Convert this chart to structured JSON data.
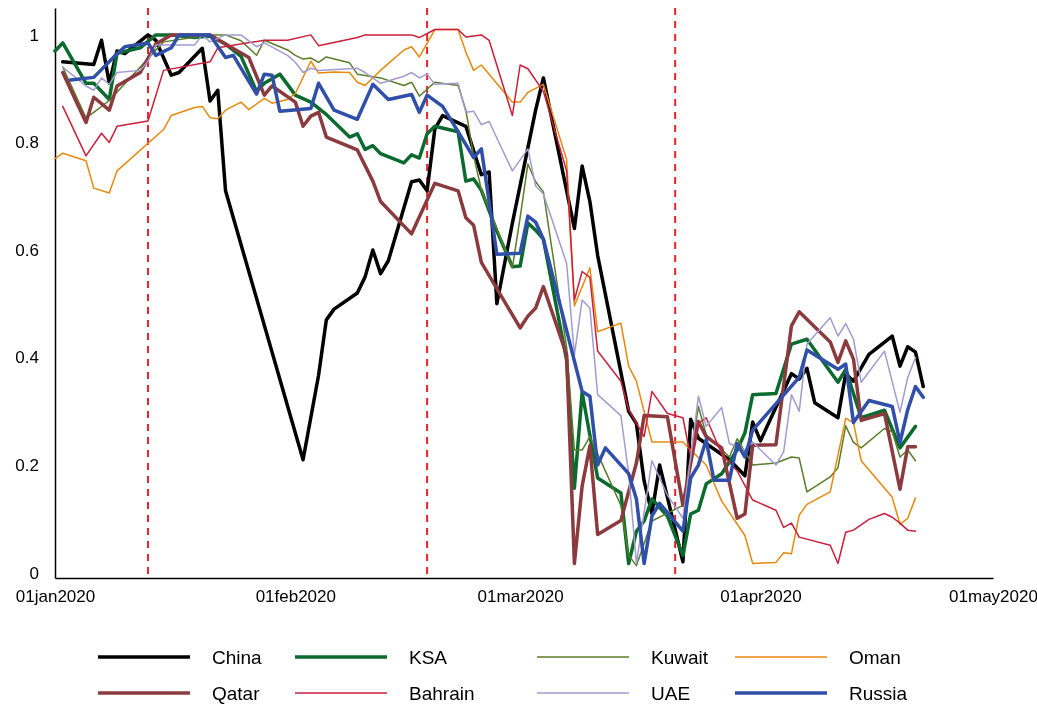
{
  "chart_data": {
    "type": "line",
    "xlim": [
      "2020-01-01",
      "2020-05-01"
    ],
    "xticks": [
      {
        "value": "2020-01-01",
        "label": "01jan2020"
      },
      {
        "value": "2020-02-01",
        "label": "01feb2020"
      },
      {
        "value": "2020-03-01",
        "label": "01mar2020"
      },
      {
        "value": "2020-04-01",
        "label": "01apr2020"
      },
      {
        "value": "2020-05-01",
        "label": "01may2020"
      }
    ],
    "ylim": [
      -0.01,
      1.05
    ],
    "yticks": [
      0,
      0.2,
      0.4,
      0.6,
      0.8,
      1
    ],
    "grid": false,
    "legend": "bottom",
    "line_style": "solid",
    "marker": "none",
    "ref_lines": [
      {
        "axis": "x",
        "value": "2020-01-13",
        "color": "#e8242a",
        "line_style": "dashed"
      },
      {
        "axis": "x",
        "value": "2020-02-18",
        "color": "#e8242a",
        "line_style": "dashed"
      },
      {
        "axis": "x",
        "value": "2020-03-21",
        "color": "#e8242a",
        "line_style": "dashed"
      }
    ],
    "series": [
      {
        "name": "China",
        "color": "#000000",
        "x": [
          "2020-01-02",
          "2020-01-06",
          "2020-01-07",
          "2020-01-08",
          "2020-01-09",
          "2020-01-10",
          "2020-01-13",
          "2020-01-14",
          "2020-01-16",
          "2020-01-17",
          "2020-01-20",
          "2020-01-21",
          "2020-01-22",
          "2020-01-23",
          "2020-02-02",
          "2020-02-04",
          "2020-02-05",
          "2020-02-06",
          "2020-02-09",
          "2020-02-10",
          "2020-02-11",
          "2020-02-12",
          "2020-02-13",
          "2020-02-16",
          "2020-02-17",
          "2020-02-18",
          "2020-02-19",
          "2020-02-20",
          "2020-02-23",
          "2020-02-25",
          "2020-02-26",
          "2020-02-27",
          "2020-02-29",
          "2020-03-03",
          "2020-03-04",
          "2020-03-08",
          "2020-03-09",
          "2020-03-10",
          "2020-03-11",
          "2020-03-15",
          "2020-03-16",
          "2020-03-17",
          "2020-03-18",
          "2020-03-19",
          "2020-03-20",
          "2020-03-22",
          "2020-03-23",
          "2020-03-24",
          "2020-03-28",
          "2020-03-30",
          "2020-03-31",
          "2020-04-01",
          "2020-04-05",
          "2020-04-06",
          "2020-04-07",
          "2020-04-08",
          "2020-04-11",
          "2020-04-12",
          "2020-04-13",
          "2020-04-15",
          "2020-04-18",
          "2020-04-19",
          "2020-04-20",
          "2020-04-21",
          "2020-04-22"
        ],
        "values": [
          0.95,
          0.945,
          0.99,
          0.91,
          0.97,
          0.965,
          1.0,
          0.99,
          0.925,
          0.93,
          0.975,
          0.877,
          0.897,
          0.71,
          0.21,
          0.367,
          0.47,
          0.49,
          0.52,
          0.55,
          0.6,
          0.556,
          0.58,
          0.727,
          0.73,
          0.71,
          0.825,
          0.85,
          0.83,
          0.74,
          0.745,
          0.5,
          0.65,
          0.86,
          0.92,
          0.64,
          0.756,
          0.69,
          0.59,
          0.3,
          0.277,
          0.17,
          0.11,
          0.2,
          0.14,
          0.02,
          0.285,
          0.25,
          0.21,
          0.18,
          0.28,
          0.245,
          0.37,
          0.36,
          0.38,
          0.316,
          0.288,
          0.37,
          0.356,
          0.406,
          0.44,
          0.384,
          0.42,
          0.41,
          0.346
        ]
      },
      {
        "name": "KSA",
        "color": "#0b6b2e",
        "x": [
          "2020-01-01",
          "2020-01-02",
          "2020-01-05",
          "2020-01-06",
          "2020-01-08",
          "2020-01-09",
          "2020-01-12",
          "2020-01-14",
          "2020-01-15",
          "2020-01-16",
          "2020-01-19",
          "2020-01-21",
          "2020-01-23",
          "2020-01-25",
          "2020-01-27",
          "2020-01-28",
          "2020-01-30",
          "2020-02-01",
          "2020-02-03",
          "2020-02-05",
          "2020-02-08",
          "2020-02-09",
          "2020-02-10",
          "2020-02-11",
          "2020-02-12",
          "2020-02-15",
          "2020-02-16",
          "2020-02-17",
          "2020-02-18",
          "2020-02-19",
          "2020-02-22",
          "2020-02-23",
          "2020-02-24",
          "2020-02-25",
          "2020-02-27",
          "2020-02-29",
          "2020-03-01",
          "2020-03-02",
          "2020-03-03",
          "2020-03-04",
          "2020-03-07",
          "2020-03-08",
          "2020-03-09",
          "2020-03-11",
          "2020-03-14",
          "2020-03-15",
          "2020-03-16",
          "2020-03-17",
          "2020-03-18",
          "2020-03-20",
          "2020-03-22",
          "2020-03-23",
          "2020-03-24",
          "2020-03-25",
          "2020-03-27",
          "2020-03-29",
          "2020-03-30",
          "2020-03-31",
          "2020-04-03",
          "2020-04-05",
          "2020-04-07",
          "2020-04-11",
          "2020-04-12",
          "2020-04-14",
          "2020-04-17",
          "2020-04-19",
          "2020-04-21"
        ],
        "values": [
          0.97,
          0.985,
          0.91,
          0.91,
          0.88,
          0.966,
          0.976,
          1.0,
          1.0,
          1.0,
          0.995,
          0.998,
          0.983,
          0.96,
          0.895,
          0.91,
          0.927,
          0.888,
          0.875,
          0.852,
          0.81,
          0.816,
          0.787,
          0.794,
          0.779,
          0.762,
          0.777,
          0.771,
          0.816,
          0.83,
          0.82,
          0.728,
          0.732,
          0.711,
          0.635,
          0.569,
          0.57,
          0.65,
          0.637,
          0.62,
          0.395,
          0.157,
          0.335,
          0.176,
          0.148,
          0.017,
          0.077,
          0.096,
          0.137,
          0.105,
          0.032,
          0.109,
          0.116,
          0.165,
          0.184,
          0.228,
          0.26,
          0.331,
          0.333,
          0.425,
          0.434,
          0.354,
          0.378,
          0.288,
          0.302,
          0.232,
          0.272
        ]
      },
      {
        "name": "Kuwait",
        "color": "#5a7d2a",
        "x": [
          "2020-01-02",
          "2020-01-05",
          "2020-01-06",
          "2020-01-08",
          "2020-01-15",
          "2020-01-21",
          "2020-01-23",
          "2020-01-25",
          "2020-01-27",
          "2020-01-28",
          "2020-01-31",
          "2020-02-01",
          "2020-02-02",
          "2020-02-03",
          "2020-02-04",
          "2020-02-05",
          "2020-02-08",
          "2020-02-09",
          "2020-02-12",
          "2020-02-15",
          "2020-02-16",
          "2020-02-17",
          "2020-02-19",
          "2020-02-22",
          "2020-02-23",
          "2020-02-24",
          "2020-02-25",
          "2020-02-29",
          "2020-03-01",
          "2020-03-02",
          "2020-03-03",
          "2020-03-04",
          "2020-03-07",
          "2020-03-08",
          "2020-03-09",
          "2020-03-10",
          "2020-03-14",
          "2020-03-15",
          "2020-03-16",
          "2020-03-18",
          "2020-03-22",
          "2020-03-24",
          "2020-03-25",
          "2020-03-28",
          "2020-03-29",
          "2020-03-31",
          "2020-04-03",
          "2020-04-05",
          "2020-04-06",
          "2020-04-07",
          "2020-04-10",
          "2020-04-11",
          "2020-04-12",
          "2020-04-13",
          "2020-04-14",
          "2020-04-17",
          "2020-04-18",
          "2020-04-19",
          "2020-04-20",
          "2020-04-21"
        ],
        "values": [
          0.94,
          0.846,
          0.856,
          0.878,
          0.987,
          1.0,
          1.0,
          0.989,
          0.962,
          0.99,
          0.972,
          0.962,
          0.955,
          0.957,
          0.949,
          0.959,
          0.948,
          0.927,
          0.92,
          0.906,
          0.912,
          0.886,
          0.912,
          0.906,
          0.86,
          0.775,
          0.712,
          0.567,
          0.66,
          0.76,
          0.727,
          0.708,
          0.419,
          0.228,
          0.228,
          0.253,
          0.125,
          0.032,
          0.013,
          0.096,
          0.125,
          0.309,
          0.257,
          0.215,
          0.249,
          0.2,
          0.204,
          0.215,
          0.213,
          0.15,
          0.178,
          0.195,
          0.273,
          0.242,
          0.232,
          0.268,
          0.262,
          0.215,
          0.228,
          0.208
        ]
      },
      {
        "name": "Oman",
        "color": "#e8890c",
        "x": [
          "2020-01-01",
          "2020-01-02",
          "2020-01-05",
          "2020-01-06",
          "2020-01-08",
          "2020-01-09",
          "2020-01-15",
          "2020-01-16",
          "2020-01-19",
          "2020-01-20",
          "2020-01-21",
          "2020-01-22",
          "2020-01-23",
          "2020-01-25",
          "2020-01-26",
          "2020-01-28",
          "2020-01-29",
          "2020-01-31",
          "2020-02-01",
          "2020-02-03",
          "2020-02-04",
          "2020-02-06",
          "2020-02-08",
          "2020-02-09",
          "2020-02-10",
          "2020-02-12",
          "2020-02-15",
          "2020-02-16",
          "2020-02-17",
          "2020-02-19",
          "2020-02-22",
          "2020-02-23",
          "2020-02-24",
          "2020-02-25",
          "2020-02-26",
          "2020-02-29",
          "2020-03-01",
          "2020-03-02",
          "2020-03-04",
          "2020-03-07",
          "2020-03-08",
          "2020-03-10",
          "2020-03-11",
          "2020-03-14",
          "2020-03-15",
          "2020-03-16",
          "2020-03-18",
          "2020-03-22",
          "2020-03-23",
          "2020-03-25",
          "2020-03-27",
          "2020-03-30",
          "2020-03-31",
          "2020-04-03",
          "2020-04-04",
          "2020-04-05",
          "2020-04-06",
          "2020-04-07",
          "2020-04-10",
          "2020-04-12",
          "2020-04-13",
          "2020-04-14",
          "2020-04-18",
          "2020-04-19",
          "2020-04-20",
          "2020-04-21"
        ],
        "values": [
          0.77,
          0.78,
          0.766,
          0.715,
          0.706,
          0.747,
          0.824,
          0.85,
          0.865,
          0.867,
          0.846,
          0.844,
          0.86,
          0.875,
          0.861,
          0.882,
          0.873,
          0.88,
          0.891,
          0.951,
          0.929,
          0.931,
          0.93,
          0.912,
          0.906,
          0.934,
          0.972,
          0.978,
          0.959,
          1.01,
          1.01,
          0.968,
          0.934,
          0.944,
          0.927,
          0.875,
          0.875,
          0.893,
          0.908,
          0.768,
          0.496,
          0.567,
          0.448,
          0.464,
          0.384,
          0.356,
          0.243,
          0.243,
          0.228,
          0.2,
          0.133,
          0.069,
          0.017,
          0.019,
          0.037,
          0.035,
          0.107,
          0.127,
          0.15,
          0.287,
          0.279,
          0.208,
          0.14,
          0.09,
          0.101,
          0.139
        ]
      },
      {
        "name": "Qatar",
        "color": "#8b3a3e",
        "x": [
          "2020-01-02",
          "2020-01-05",
          "2020-01-06",
          "2020-01-08",
          "2020-01-09",
          "2020-01-12",
          "2020-01-14",
          "2020-01-16",
          "2020-01-19",
          "2020-01-21",
          "2020-01-23",
          "2020-01-26",
          "2020-01-28",
          "2020-01-29",
          "2020-02-01",
          "2020-02-02",
          "2020-02-03",
          "2020-02-04",
          "2020-02-05",
          "2020-02-09",
          "2020-02-11",
          "2020-02-12",
          "2020-02-16",
          "2020-02-19",
          "2020-02-22",
          "2020-02-23",
          "2020-02-24",
          "2020-02-25",
          "2020-03-01",
          "2020-03-02",
          "2020-03-03",
          "2020-03-04",
          "2020-03-07",
          "2020-03-08",
          "2020-03-09",
          "2020-03-10",
          "2020-03-11",
          "2020-03-14",
          "2020-03-16",
          "2020-03-17",
          "2020-03-20",
          "2020-03-22",
          "2020-03-24",
          "2020-03-25",
          "2020-03-27",
          "2020-03-29",
          "2020-03-30",
          "2020-03-31",
          "2020-04-03",
          "2020-04-05",
          "2020-04-06",
          "2020-04-10",
          "2020-04-11",
          "2020-04-12",
          "2020-04-13",
          "2020-04-14",
          "2020-04-17",
          "2020-04-19",
          "2020-04-20",
          "2020-04-21"
        ],
        "values": [
          0.93,
          0.837,
          0.884,
          0.86,
          0.905,
          0.93,
          0.983,
          1.0,
          1.0,
          1.0,
          0.983,
          0.958,
          0.888,
          0.905,
          0.875,
          0.83,
          0.849,
          0.856,
          0.81,
          0.786,
          0.728,
          0.69,
          0.63,
          0.724,
          0.71,
          0.66,
          0.646,
          0.577,
          0.455,
          0.477,
          0.492,
          0.532,
          0.405,
          0.017,
          0.161,
          0.236,
          0.071,
          0.097,
          0.204,
          0.292,
          0.29,
          0.125,
          0.281,
          0.253,
          0.232,
          0.101,
          0.109,
          0.237,
          0.238,
          0.459,
          0.485,
          0.429,
          0.391,
          0.431,
          0.397,
          0.283,
          0.296,
          0.155,
          0.234,
          0.234
        ]
      },
      {
        "name": "Bahrain",
        "color": "#cc1f3c",
        "x": [
          "2020-01-02",
          "2020-01-05",
          "2020-01-07",
          "2020-01-08",
          "2020-01-09",
          "2020-01-13",
          "2020-01-15",
          "2020-01-21",
          "2020-01-22",
          "2020-01-28",
          "2020-01-31",
          "2020-02-03",
          "2020-02-04",
          "2020-02-09",
          "2020-02-10",
          "2020-02-16",
          "2020-02-17",
          "2020-02-19",
          "2020-02-22",
          "2020-02-23",
          "2020-02-25",
          "2020-02-26",
          "2020-02-29",
          "2020-03-01",
          "2020-03-02",
          "2020-03-04",
          "2020-03-07",
          "2020-03-08",
          "2020-03-09",
          "2020-03-10",
          "2020-03-11",
          "2020-03-14",
          "2020-03-15",
          "2020-03-17",
          "2020-03-18",
          "2020-03-20",
          "2020-03-22",
          "2020-03-23",
          "2020-03-24",
          "2020-03-25",
          "2020-03-27",
          "2020-03-29",
          "2020-03-31",
          "2020-04-03",
          "2020-04-04",
          "2020-04-05",
          "2020-04-06",
          "2020-04-10",
          "2020-04-11",
          "2020-04-12",
          "2020-04-13",
          "2020-04-15",
          "2020-04-17",
          "2020-04-18",
          "2020-04-19",
          "2020-04-20",
          "2020-04-21"
        ],
        "values": [
          0.867,
          0.775,
          0.817,
          0.8,
          0.83,
          0.84,
          0.934,
          0.95,
          0.976,
          0.99,
          0.99,
          1.0,
          0.98,
          0.995,
          1.0,
          1.0,
          0.995,
          1.01,
          1.01,
          0.996,
          1.0,
          0.99,
          0.85,
          0.944,
          0.937,
          0.895,
          0.747,
          0.507,
          0.56,
          0.549,
          0.412,
          0.356,
          0.303,
          0.253,
          0.337,
          0.296,
          0.288,
          0.215,
          0.277,
          0.288,
          0.221,
          0.189,
          0.135,
          0.116,
          0.084,
          0.092,
          0.066,
          0.051,
          0.017,
          0.075,
          0.079,
          0.099,
          0.11,
          0.103,
          0.092,
          0.079,
          0.077
        ]
      },
      {
        "name": "UAE",
        "color": "#a29bd0",
        "x": [
          "2020-01-02",
          "2020-01-05",
          "2020-01-06",
          "2020-01-07",
          "2020-01-08",
          "2020-01-09",
          "2020-01-12",
          "2020-01-13",
          "2020-01-14",
          "2020-01-19",
          "2020-01-20",
          "2020-01-21",
          "2020-01-23",
          "2020-01-25",
          "2020-01-27",
          "2020-01-28",
          "2020-01-31",
          "2020-02-01",
          "2020-02-02",
          "2020-02-03",
          "2020-02-04",
          "2020-02-09",
          "2020-02-10",
          "2020-02-12",
          "2020-02-15",
          "2020-02-16",
          "2020-02-17",
          "2020-02-18",
          "2020-02-19",
          "2020-02-22",
          "2020-02-23",
          "2020-02-24",
          "2020-02-25",
          "2020-02-26",
          "2020-02-29",
          "2020-03-02",
          "2020-03-03",
          "2020-03-04",
          "2020-03-07",
          "2020-03-08",
          "2020-03-09",
          "2020-03-10",
          "2020-03-11",
          "2020-03-14",
          "2020-03-15",
          "2020-03-16",
          "2020-03-18",
          "2020-03-20",
          "2020-03-22",
          "2020-03-24",
          "2020-03-25",
          "2020-03-27",
          "2020-03-28",
          "2020-03-30",
          "2020-03-31",
          "2020-04-03",
          "2020-04-04",
          "2020-04-05",
          "2020-04-06",
          "2020-04-07",
          "2020-04-10",
          "2020-04-11",
          "2020-04-12",
          "2020-04-13",
          "2020-04-14",
          "2020-04-17",
          "2020-04-19",
          "2020-04-20",
          "2020-04-21"
        ],
        "values": [
          0.94,
          0.905,
          0.897,
          0.92,
          0.908,
          0.93,
          0.934,
          0.951,
          0.981,
          0.981,
          1.0,
          0.987,
          1.0,
          1.0,
          0.978,
          0.985,
          0.962,
          0.949,
          0.93,
          0.938,
          0.934,
          0.938,
          0.93,
          0.91,
          0.923,
          0.93,
          0.92,
          0.927,
          0.908,
          0.91,
          0.856,
          0.858,
          0.833,
          0.839,
          0.747,
          0.788,
          0.719,
          0.704,
          0.575,
          0.405,
          0.507,
          0.492,
          0.331,
          0.292,
          0.184,
          0.017,
          0.208,
          0.144,
          0.101,
          0.328,
          0.272,
          0.307,
          0.24,
          0.228,
          0.243,
          0.2,
          0.225,
          0.331,
          0.3,
          0.425,
          0.474,
          0.44,
          0.463,
          0.434,
          0.354,
          0.412,
          0.298,
          0.363,
          0.4
        ]
      },
      {
        "name": "Russia",
        "color": "#2f4fa8",
        "x": [
          "2020-01-03",
          "2020-01-06",
          "2020-01-09",
          "2020-01-10",
          "2020-01-13",
          "2020-01-14",
          "2020-01-16",
          "2020-01-17",
          "2020-01-20",
          "2020-01-21",
          "2020-01-23",
          "2020-01-24",
          "2020-01-27",
          "2020-01-28",
          "2020-01-29",
          "2020-01-30",
          "2020-02-03",
          "2020-02-04",
          "2020-02-06",
          "2020-02-09",
          "2020-02-11",
          "2020-02-13",
          "2020-02-16",
          "2020-02-17",
          "2020-02-18",
          "2020-02-20",
          "2020-02-22",
          "2020-02-24",
          "2020-02-25",
          "2020-02-27",
          "2020-03-01",
          "2020-03-02",
          "2020-03-03",
          "2020-03-04",
          "2020-03-09",
          "2020-03-10",
          "2020-03-11",
          "2020-03-12",
          "2020-03-15",
          "2020-03-16",
          "2020-03-17",
          "2020-03-18",
          "2020-03-19",
          "2020-03-22",
          "2020-03-23",
          "2020-03-24",
          "2020-03-25",
          "2020-03-26",
          "2020-03-28",
          "2020-03-29",
          "2020-03-30",
          "2020-03-31",
          "2020-04-06",
          "2020-04-07",
          "2020-04-11",
          "2020-04-12",
          "2020-04-13",
          "2020-04-15",
          "2020-04-18",
          "2020-04-19",
          "2020-04-20",
          "2020-04-21",
          "2020-04-22"
        ],
        "values": [
          0.916,
          0.921,
          0.965,
          0.978,
          0.985,
          0.962,
          0.976,
          1.0,
          1.0,
          1.0,
          0.958,
          0.962,
          0.89,
          0.927,
          0.925,
          0.858,
          0.863,
          0.91,
          0.86,
          0.843,
          0.908,
          0.88,
          0.889,
          0.856,
          0.888,
          0.867,
          0.82,
          0.772,
          0.788,
          0.592,
          0.594,
          0.663,
          0.652,
          0.62,
          0.337,
          0.328,
          0.2,
          0.232,
          0.184,
          0.137,
          0.017,
          0.105,
          0.129,
          0.077,
          0.176,
          0.2,
          0.247,
          0.172,
          0.172,
          0.24,
          0.215,
          0.265,
          0.363,
          0.414,
          0.378,
          0.388,
          0.279,
          0.32,
          0.309,
          0.242,
          0.303,
          0.346,
          0.326
        ]
      }
    ]
  }
}
